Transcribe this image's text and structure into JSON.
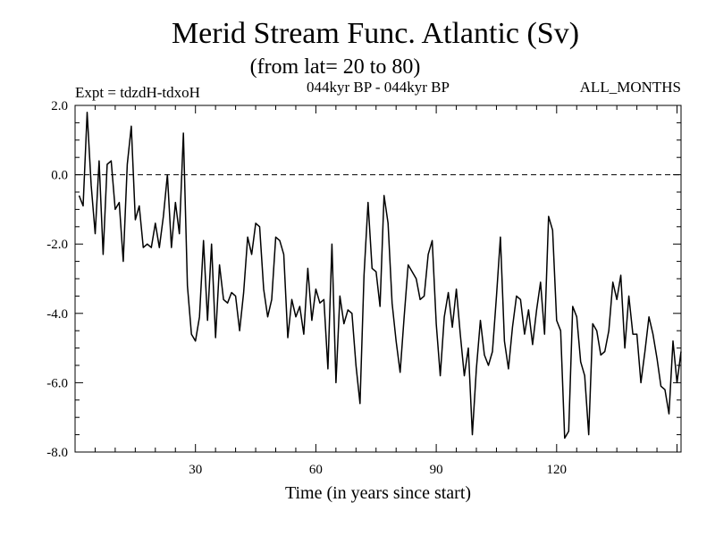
{
  "chart_data": {
    "type": "line",
    "title": "Merid Stream Func. Atlantic (Sv)",
    "subtitle": "(from lat= 20 to 80)",
    "experiment": "Expt = tdzdH-tdxoH",
    "period": "044kyr BP - 044kyr BP",
    "months": "ALL_MONTHS",
    "xlabel": "Time (in years since start)",
    "ylabel": "",
    "xlim": [
      0,
      151
    ],
    "ylim": [
      -8.0,
      2.0
    ],
    "xticks": [
      30,
      60,
      90,
      120
    ],
    "xtick_labels": [
      "30",
      "60",
      "90",
      "120"
    ],
    "yticks": [
      2.0,
      0.0,
      -2.0,
      -4.0,
      -6.0,
      -8.0
    ],
    "ytick_labels": [
      "2.0",
      "0.0",
      "-2.0",
      "-4.0",
      "-6.0",
      "-8.0"
    ],
    "reference_line": 0.0,
    "series": [
      {
        "name": "Merid Stream Func. Atlantic",
        "x": [
          1,
          2,
          3,
          4,
          5,
          6,
          7,
          8,
          9,
          10,
          11,
          12,
          13,
          14,
          15,
          16,
          17,
          18,
          19,
          20,
          21,
          22,
          23,
          24,
          25,
          26,
          27,
          28,
          29,
          30,
          31,
          32,
          33,
          34,
          35,
          36,
          37,
          38,
          39,
          40,
          41,
          42,
          43,
          44,
          45,
          46,
          47,
          48,
          49,
          50,
          51,
          52,
          53,
          54,
          55,
          56,
          57,
          58,
          59,
          60,
          61,
          62,
          63,
          64,
          65,
          66,
          67,
          68,
          69,
          70,
          71,
          72,
          73,
          74,
          75,
          76,
          77,
          78,
          79,
          80,
          81,
          82,
          83,
          84,
          85,
          86,
          87,
          88,
          89,
          90,
          91,
          92,
          93,
          94,
          95,
          96,
          97,
          98,
          99,
          100,
          101,
          102,
          103,
          104,
          105,
          106,
          107,
          108,
          109,
          110,
          111,
          112,
          113,
          114,
          115,
          116,
          117,
          118,
          119,
          120,
          121,
          122,
          123,
          124,
          125,
          126,
          127,
          128,
          129,
          130,
          131,
          132,
          133,
          134,
          135,
          136,
          137,
          138,
          139,
          140,
          141,
          142,
          143,
          144,
          145,
          146,
          147,
          148,
          149,
          150,
          151
        ],
        "values": [
          -0.6,
          -0.9,
          1.8,
          -0.3,
          -1.7,
          0.4,
          -2.3,
          0.3,
          0.4,
          -1.0,
          -0.8,
          -2.5,
          0.3,
          1.4,
          -1.3,
          -0.9,
          -2.1,
          -2.0,
          -2.1,
          -1.4,
          -2.1,
          -1.2,
          0.0,
          -2.1,
          -0.8,
          -1.7,
          1.2,
          -3.2,
          -4.6,
          -4.8,
          -4.1,
          -1.9,
          -4.2,
          -2.0,
          -4.7,
          -2.6,
          -3.6,
          -3.7,
          -3.4,
          -3.5,
          -4.5,
          -3.4,
          -1.8,
          -2.3,
          -1.4,
          -1.5,
          -3.3,
          -4.1,
          -3.6,
          -1.8,
          -1.9,
          -2.3,
          -4.7,
          -3.6,
          -4.1,
          -3.8,
          -4.6,
          -2.7,
          -4.2,
          -3.3,
          -3.7,
          -3.6,
          -5.6,
          -2.0,
          -6.0,
          -3.5,
          -4.3,
          -3.9,
          -4.0,
          -5.5,
          -6.6,
          -2.9,
          -0.8,
          -2.7,
          -2.8,
          -3.8,
          -0.6,
          -1.4,
          -3.7,
          -4.8,
          -5.7,
          -4.1,
          -2.6,
          -2.8,
          -3.0,
          -3.6,
          -3.5,
          -2.3,
          -1.9,
          -4.3,
          -5.8,
          -4.1,
          -3.4,
          -4.4,
          -3.3,
          -4.6,
          -5.8,
          -5.0,
          -7.5,
          -5.6,
          -4.2,
          -5.2,
          -5.5,
          -5.1,
          -3.5,
          -1.8,
          -4.8,
          -5.6,
          -4.4,
          -3.5,
          -3.6,
          -4.6,
          -3.9,
          -4.9,
          -3.9,
          -3.1,
          -4.6,
          -1.2,
          -1.6,
          -4.2,
          -4.5,
          -7.6,
          -7.4,
          -3.8,
          -4.1,
          -5.4,
          -5.8,
          -7.5,
          -4.3,
          -4.5,
          -5.2,
          -5.1,
          -4.5,
          -3.1,
          -3.6,
          -2.9,
          -5.0,
          -3.5,
          -4.6,
          -4.6,
          -6.0,
          -5.1,
          -4.1,
          -4.6,
          -5.3,
          -6.1,
          -6.2,
          -6.9,
          -4.8,
          -6.0,
          -5.1
        ]
      }
    ]
  }
}
